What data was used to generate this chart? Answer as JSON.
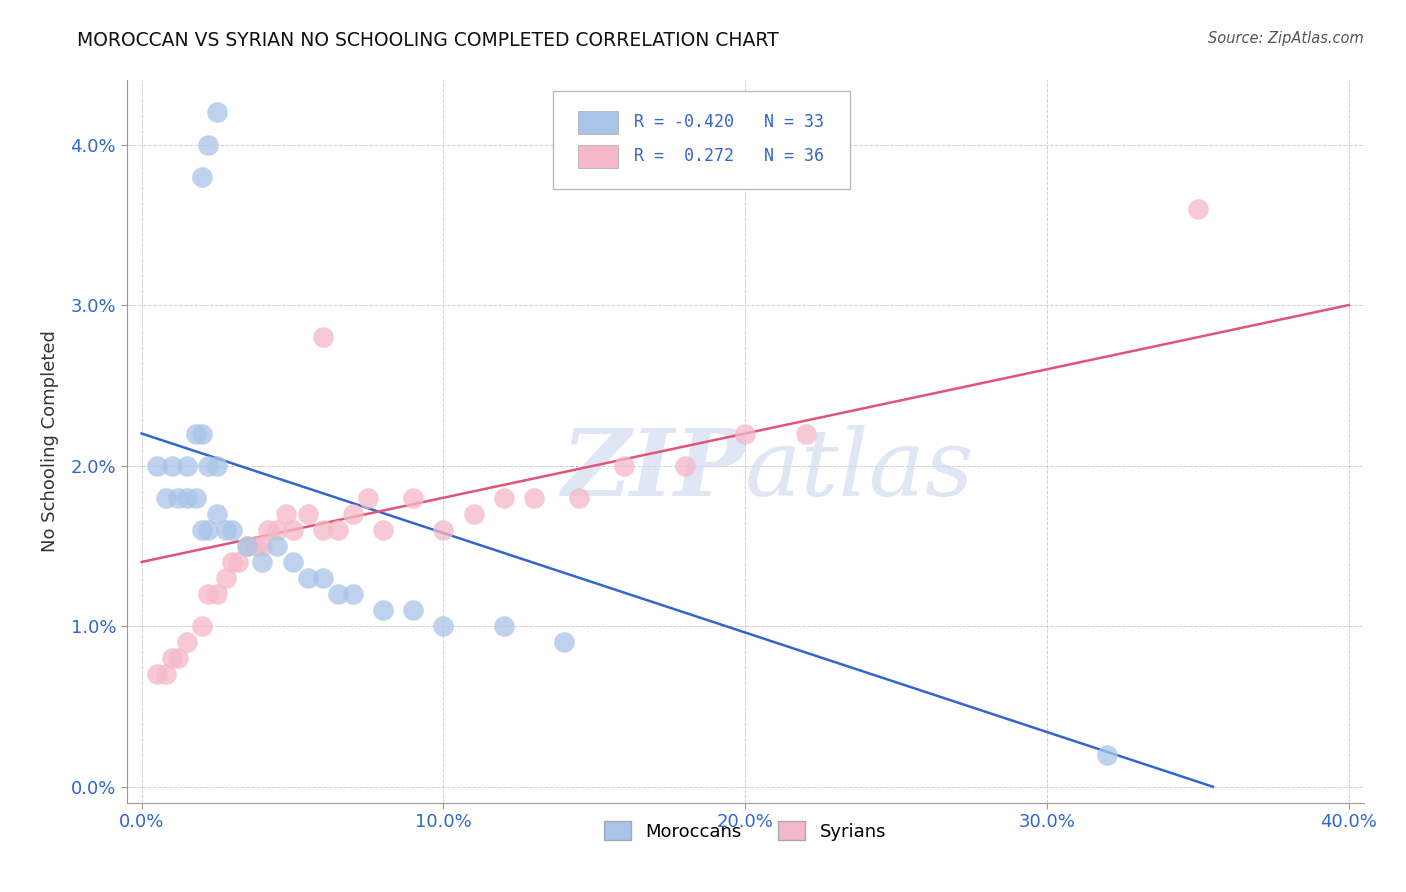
{
  "title": "MOROCCAN VS SYRIAN NO SCHOOLING COMPLETED CORRELATION CHART",
  "source": "Source: ZipAtlas.com",
  "ylabel": "No Schooling Completed",
  "xlabel_tick_vals": [
    0.0,
    0.1,
    0.2,
    0.3,
    0.4
  ],
  "ylabel_tick_vals": [
    0.0,
    0.01,
    0.02,
    0.03,
    0.04
  ],
  "xlim": [
    -0.005,
    0.405
  ],
  "ylim": [
    -0.001,
    0.044
  ],
  "moroccan_R": -0.42,
  "moroccan_N": 33,
  "syrian_R": 0.272,
  "syrian_N": 36,
  "moroccan_color": "#a8c4e8",
  "syrian_color": "#f5b8c8",
  "moroccan_line_color": "#3366cc",
  "syrian_line_color": "#e05575",
  "legend_moroccan_label": "Moroccans",
  "legend_syrian_label": "Syrians",
  "watermark_zip": "ZIP",
  "watermark_atlas": "atlas",
  "moroccan_x": [
    0.02,
    0.022,
    0.025,
    0.005,
    0.008,
    0.01,
    0.012,
    0.015,
    0.018,
    0.02,
    0.022,
    0.025,
    0.015,
    0.018,
    0.02,
    0.022,
    0.025,
    0.028,
    0.03,
    0.035,
    0.04,
    0.045,
    0.05,
    0.055,
    0.06,
    0.065,
    0.07,
    0.08,
    0.09,
    0.1,
    0.12,
    0.14,
    0.32
  ],
  "moroccan_y": [
    0.038,
    0.04,
    0.042,
    0.02,
    0.018,
    0.02,
    0.018,
    0.02,
    0.022,
    0.022,
    0.02,
    0.02,
    0.018,
    0.018,
    0.016,
    0.016,
    0.017,
    0.016,
    0.016,
    0.015,
    0.014,
    0.015,
    0.014,
    0.013,
    0.013,
    0.012,
    0.012,
    0.011,
    0.011,
    0.01,
    0.01,
    0.009,
    0.002
  ],
  "syrian_x": [
    0.005,
    0.008,
    0.01,
    0.012,
    0.015,
    0.02,
    0.022,
    0.025,
    0.028,
    0.03,
    0.032,
    0.035,
    0.038,
    0.04,
    0.042,
    0.045,
    0.048,
    0.05,
    0.055,
    0.06,
    0.065,
    0.07,
    0.075,
    0.08,
    0.09,
    0.1,
    0.11,
    0.12,
    0.13,
    0.145,
    0.16,
    0.18,
    0.2,
    0.22,
    0.35,
    0.06
  ],
  "syrian_y": [
    0.007,
    0.007,
    0.008,
    0.008,
    0.009,
    0.01,
    0.012,
    0.012,
    0.013,
    0.014,
    0.014,
    0.015,
    0.015,
    0.015,
    0.016,
    0.016,
    0.017,
    0.016,
    0.017,
    0.016,
    0.016,
    0.017,
    0.018,
    0.016,
    0.018,
    0.016,
    0.017,
    0.018,
    0.018,
    0.018,
    0.02,
    0.02,
    0.022,
    0.022,
    0.036,
    0.028
  ],
  "moroccan_line_x0": 0.0,
  "moroccan_line_y0": 0.022,
  "moroccan_line_x1": 0.355,
  "moroccan_line_y1": 0.0,
  "syrian_line_x0": 0.0,
  "syrian_line_y0": 0.014,
  "syrian_line_x1": 0.4,
  "syrian_line_y1": 0.03
}
